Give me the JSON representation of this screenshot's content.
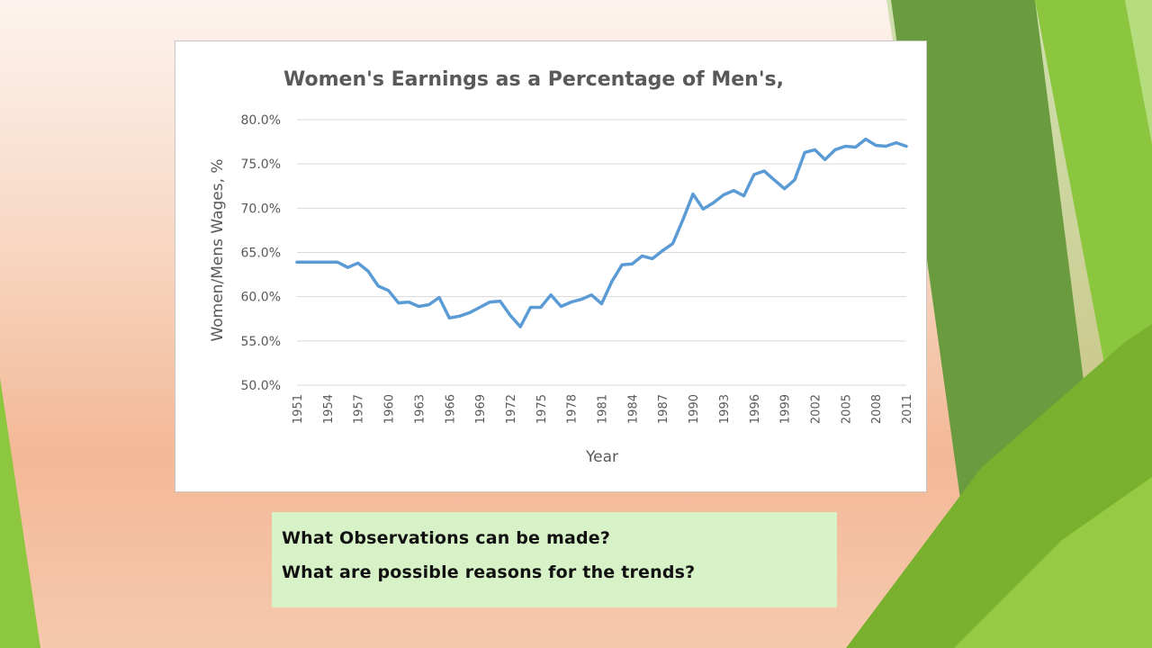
{
  "colors": {
    "series": "#5b9bd5",
    "question_box": "#d8f2c8",
    "accent_green": "#8dc63f",
    "dark_green": "#6a9b3e"
  },
  "questions": [
    "What Observations can be made?",
    "What are possible reasons for the trends?"
  ],
  "chart_data": {
    "type": "line",
    "title": "Women's Earnings as a Percentage of Men's,",
    "xlabel": "Year",
    "ylabel": "Women/Mens Wages, %",
    "ylim": [
      50,
      80
    ],
    "ytick_labels": [
      "50.0%",
      "55.0%",
      "60.0%",
      "65.0%",
      "70.0%",
      "75.0%",
      "80.0%"
    ],
    "xtick_labels": [
      "1951",
      "1954",
      "1957",
      "1960",
      "1963",
      "1966",
      "1969",
      "1972",
      "1975",
      "1978",
      "1981",
      "1984",
      "1987",
      "1990",
      "1993",
      "1996",
      "1999",
      "2002",
      "2005",
      "2008",
      "2011"
    ],
    "grid": true,
    "x": [
      1951,
      1952,
      1953,
      1954,
      1955,
      1956,
      1957,
      1958,
      1959,
      1960,
      1961,
      1962,
      1963,
      1964,
      1965,
      1966,
      1967,
      1968,
      1969,
      1970,
      1971,
      1972,
      1973,
      1974,
      1975,
      1976,
      1977,
      1978,
      1979,
      1980,
      1981,
      1982,
      1983,
      1984,
      1985,
      1986,
      1987,
      1988,
      1989,
      1990,
      1991,
      1992,
      1993,
      1994,
      1995,
      1996,
      1997,
      1998,
      1999,
      2000,
      2001,
      2002,
      2003,
      2004,
      2005,
      2006,
      2007,
      2008,
      2009,
      2010,
      2011
    ],
    "series": [
      {
        "values": [
          63.9,
          63.9,
          63.9,
          63.9,
          63.9,
          63.3,
          63.8,
          62.9,
          61.2,
          60.7,
          59.3,
          59.4,
          58.9,
          59.1,
          59.9,
          57.6,
          57.8,
          58.2,
          58.8,
          59.4,
          59.5,
          57.9,
          56.6,
          58.8,
          58.8,
          60.2,
          58.9,
          59.4,
          59.7,
          60.2,
          59.2,
          61.7,
          63.6,
          63.7,
          64.6,
          64.3,
          65.2,
          66.0,
          68.7,
          71.6,
          69.9,
          70.6,
          71.5,
          72.0,
          71.4,
          73.8,
          74.2,
          73.2,
          72.2,
          73.2,
          76.3,
          76.6,
          75.5,
          76.6,
          77.0,
          76.9,
          77.8,
          77.1,
          77.0,
          77.4,
          77.0
        ]
      }
    ]
  }
}
